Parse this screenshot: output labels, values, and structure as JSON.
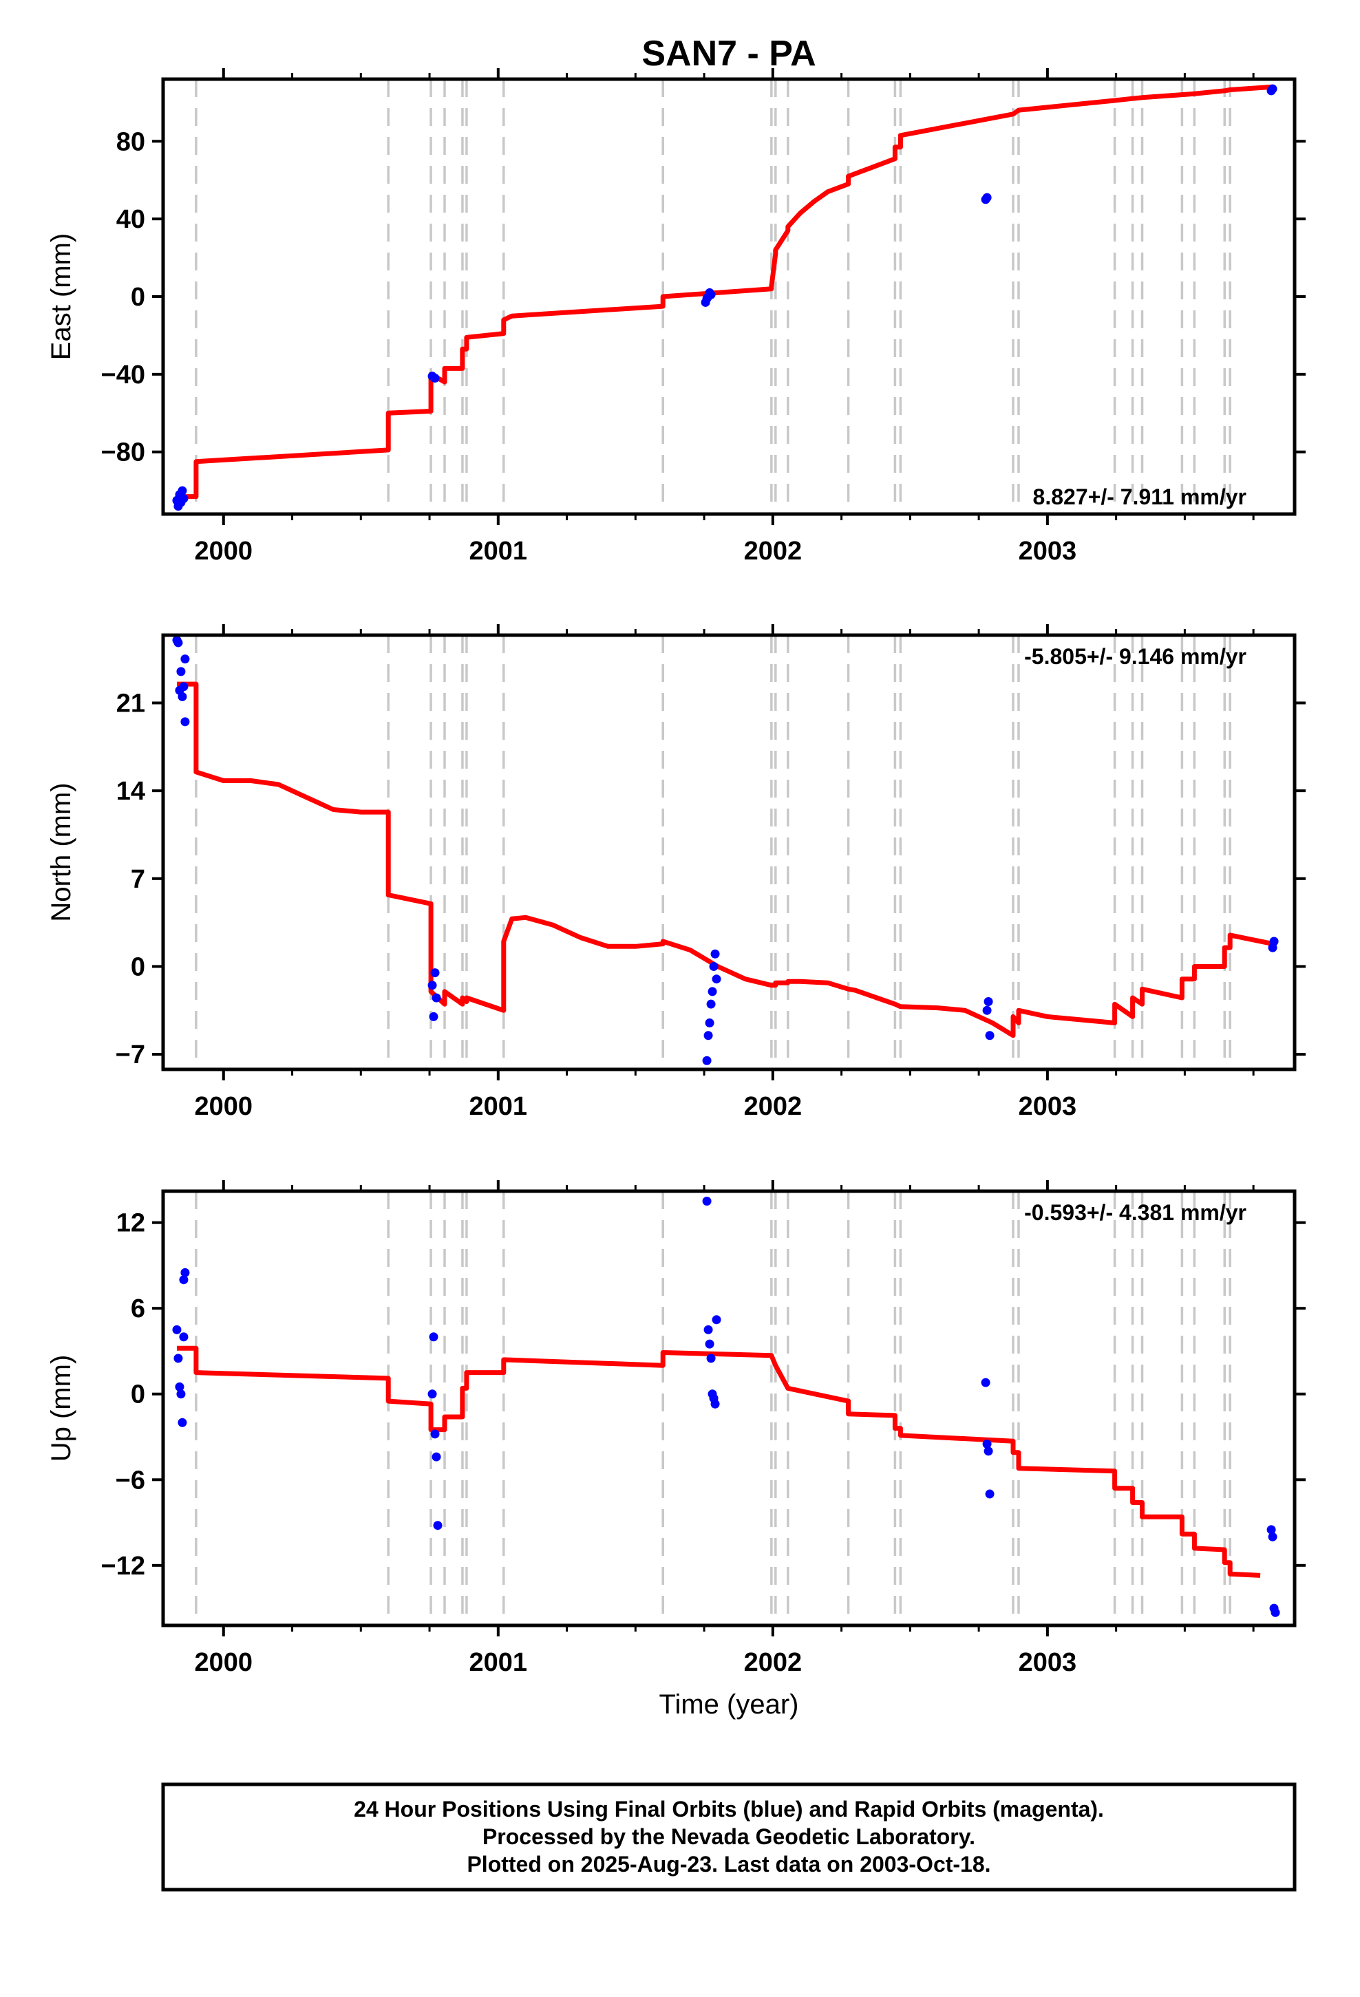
{
  "title": "SAN7 - PA",
  "xlabel": "Time (year)",
  "caption": {
    "lines": [
      "24 Hour Positions Using Final Orbits (blue) and Rapid Orbits (magenta).",
      "Processed by the Nevada Geodetic Laboratory.",
      "Plotted on 2025-Aug-23. Last data on 2003-Oct-18."
    ]
  },
  "colors": {
    "data_points": "#0000ff",
    "model_line": "#ff0000",
    "event_lines": "#c8c8c8",
    "frame": "#000000"
  },
  "chart_data": [
    {
      "type": "scatter",
      "component": "east",
      "ylabel": "East (mm)",
      "rate_text": "8.827+/- 7.911 mm/yr",
      "rate_position": "bottom-right",
      "xlim": [
        1999.78,
        2003.9
      ],
      "ylim": [
        -112,
        112
      ],
      "x_ticks": [
        2000,
        2001,
        2002,
        2003
      ],
      "x_tick_labels": [
        "2000",
        "2001",
        "2002",
        "2003"
      ],
      "y_ticks": [
        -80,
        -40,
        0,
        40,
        80
      ],
      "y_tick_labels": [
        "−80",
        "−40",
        "0",
        "40",
        "80"
      ],
      "event_lines_x": [
        1999.9,
        2000.6,
        2000.755,
        2000.805,
        2000.87,
        2000.885,
        2001.02,
        2001.6,
        2001.995,
        2002.01,
        2002.055,
        2002.275,
        2002.445,
        2002.465,
        2002.875,
        2002.895,
        2003.245,
        2003.31,
        2003.345,
        2003.49,
        2003.535,
        2003.645,
        2003.665
      ],
      "points": {
        "x": [
          1999.83,
          1999.835,
          1999.84,
          1999.845,
          1999.85,
          1999.855,
          2000.76,
          2000.77,
          2001.755,
          2001.76,
          2001.765,
          2001.77,
          2001.775,
          2002.775,
          2002.78,
          2003.815,
          2003.82
        ],
        "y": [
          -105,
          -108,
          -102,
          -106,
          -100,
          -104,
          -41,
          -42,
          -3,
          -1,
          0,
          2,
          1,
          50,
          51,
          106,
          107
        ]
      },
      "model": {
        "x": [
          1999.83,
          1999.9,
          1999.9,
          2000.6,
          2000.6,
          2000.755,
          2000.755,
          2000.805,
          2000.805,
          2000.87,
          2000.87,
          2000.885,
          2000.885,
          2001.02,
          2001.02,
          2001.05,
          2001.6,
          2001.6,
          2001.995,
          2001.995,
          2002.01,
          2002.01,
          2002.055,
          2002.055,
          2002.1,
          2002.15,
          2002.2,
          2002.275,
          2002.275,
          2002.445,
          2002.445,
          2002.465,
          2002.465,
          2002.875,
          2002.875,
          2002.895,
          2002.895,
          2003.245,
          2003.245,
          2003.31,
          2003.31,
          2003.345,
          2003.345,
          2003.49,
          2003.49,
          2003.535,
          2003.535,
          2003.645,
          2003.645,
          2003.665,
          2003.665,
          2003.82
        ],
        "y": [
          -103,
          -103,
          -85,
          -79,
          -60,
          -59,
          -40,
          -44,
          -37,
          -37,
          -27,
          -27,
          -21,
          -19,
          -12,
          -10,
          -5,
          0,
          4,
          5,
          22,
          24,
          34,
          36,
          43,
          49,
          54,
          58,
          62,
          71,
          77,
          77,
          83,
          94,
          94,
          96,
          96,
          101,
          101,
          102,
          102,
          102.5,
          102.5,
          104,
          104,
          104.5,
          104.5,
          106,
          106,
          106.5,
          106.5,
          108
        ]
      }
    },
    {
      "type": "scatter",
      "component": "north",
      "ylabel": "North (mm)",
      "rate_text": "-5.805+/- 9.146 mm/yr",
      "rate_position": "top-right",
      "xlim": [
        1999.78,
        2003.9
      ],
      "ylim": [
        -8.2,
        26.4
      ],
      "x_ticks": [
        2000,
        2001,
        2002,
        2003
      ],
      "x_tick_labels": [
        "2000",
        "2001",
        "2002",
        "2003"
      ],
      "y_ticks": [
        -7,
        0,
        7,
        14,
        21
      ],
      "y_tick_labels": [
        "−7",
        "0",
        "7",
        "14",
        "21"
      ],
      "event_lines_x": [
        1999.9,
        2000.6,
        2000.755,
        2000.805,
        2000.87,
        2000.885,
        2001.02,
        2001.6,
        2001.995,
        2002.01,
        2002.055,
        2002.275,
        2002.445,
        2002.465,
        2002.875,
        2002.895,
        2003.245,
        2003.31,
        2003.345,
        2003.49,
        2003.535,
        2003.645,
        2003.665
      ],
      "points": {
        "x": [
          1999.83,
          1999.835,
          1999.84,
          1999.845,
          1999.85,
          1999.855,
          1999.86,
          1999.86,
          2000.76,
          2000.765,
          2000.77,
          2000.775,
          2001.76,
          2001.765,
          2001.77,
          2001.775,
          2001.78,
          2001.785,
          2001.79,
          2001.795,
          2002.78,
          2002.785,
          2002.79,
          2003.82,
          2003.825
        ],
        "y": [
          26,
          25.8,
          22,
          23.5,
          21.5,
          22.3,
          19.5,
          24.5,
          -1.5,
          -4,
          -0.5,
          -2.5,
          -7.5,
          -5.5,
          -4.5,
          -3,
          -2,
          0,
          1,
          -1,
          -3.5,
          -2.8,
          -5.5,
          1.5,
          2
        ]
      },
      "model": {
        "x": [
          1999.83,
          1999.9,
          1999.9,
          2000.0,
          2000.1,
          2000.2,
          2000.3,
          2000.4,
          2000.5,
          2000.6,
          2000.6,
          2000.755,
          2000.755,
          2000.805,
          2000.805,
          2000.87,
          2000.87,
          2000.885,
          2000.885,
          2001.02,
          2001.02,
          2001.05,
          2001.1,
          2001.2,
          2001.3,
          2001.4,
          2001.5,
          2001.6,
          2001.6,
          2001.7,
          2001.8,
          2001.9,
          2001.995,
          2001.995,
          2002.01,
          2002.01,
          2002.055,
          2002.055,
          2002.1,
          2002.2,
          2002.275,
          2002.275,
          2002.3,
          2002.445,
          2002.445,
          2002.465,
          2002.465,
          2002.6,
          2002.7,
          2002.8,
          2002.875,
          2002.875,
          2002.895,
          2002.895,
          2003.0,
          2003.1,
          2003.245,
          2003.245,
          2003.31,
          2003.31,
          2003.345,
          2003.345,
          2003.49,
          2003.49,
          2003.535,
          2003.535,
          2003.645,
          2003.645,
          2003.665,
          2003.665,
          2003.82
        ],
        "y": [
          22.5,
          22.5,
          15.5,
          14.8,
          14.8,
          14.5,
          13.5,
          12.5,
          12.3,
          12.3,
          5.7,
          5,
          -2,
          -3,
          -2,
          -3,
          -2.5,
          -2.8,
          -2.5,
          -3.5,
          2,
          3.8,
          3.9,
          3.3,
          2.3,
          1.6,
          1.6,
          1.8,
          2,
          1.3,
          0,
          -1,
          -1.5,
          -1.5,
          -1.5,
          -1.3,
          -1.3,
          -1.2,
          -1.2,
          -1.3,
          -1.8,
          -1.8,
          -1.9,
          -3,
          -3,
          -3.2,
          -3.2,
          -3.3,
          -3.5,
          -4.5,
          -5.5,
          -4,
          -4.5,
          -3.5,
          -4,
          -4.2,
          -4.5,
          -3,
          -4,
          -2.5,
          -3,
          -1.8,
          -2.5,
          -1,
          -1,
          0,
          0,
          1.5,
          1.5,
          2.5,
          1.8
        ]
      }
    },
    {
      "type": "scatter",
      "component": "up",
      "ylabel": "Up (mm)",
      "rate_text": "-0.593+/- 4.381 mm/yr",
      "rate_position": "top-right",
      "xlim": [
        1999.78,
        2003.9
      ],
      "ylim": [
        -16.2,
        14.2
      ],
      "x_ticks": [
        2000,
        2001,
        2002,
        2003
      ],
      "x_tick_labels": [
        "2000",
        "2001",
        "2002",
        "2003"
      ],
      "y_ticks": [
        -12,
        -6,
        0,
        6,
        12
      ],
      "y_tick_labels": [
        "−12",
        "−6",
        "0",
        "6",
        "12"
      ],
      "event_lines_x": [
        1999.9,
        2000.6,
        2000.755,
        2000.805,
        2000.87,
        2000.885,
        2001.02,
        2001.6,
        2001.995,
        2002.01,
        2002.055,
        2002.275,
        2002.445,
        2002.465,
        2002.875,
        2002.895,
        2003.245,
        2003.31,
        2003.345,
        2003.49,
        2003.535,
        2003.645,
        2003.665
      ],
      "points": {
        "x": [
          1999.83,
          1999.835,
          1999.84,
          1999.845,
          1999.85,
          1999.855,
          1999.855,
          1999.86,
          2000.76,
          2000.765,
          2000.77,
          2000.775,
          2000.78,
          2001.76,
          2001.765,
          2001.77,
          2001.775,
          2001.78,
          2001.785,
          2001.79,
          2001.795,
          2002.775,
          2002.78,
          2002.785,
          2002.79,
          2003.815,
          2003.82,
          2003.825,
          2003.83
        ],
        "y": [
          4.5,
          2.5,
          0.5,
          0,
          -2,
          4,
          8,
          8.5,
          0,
          4,
          -2.8,
          -4.4,
          -9.2,
          13.5,
          4.5,
          3.5,
          2.5,
          0,
          -0.3,
          -0.7,
          5.2,
          0.8,
          -3.5,
          -4,
          -7,
          -9.5,
          -10,
          -15,
          -15.3
        ]
      },
      "model": {
        "x": [
          1999.83,
          1999.9,
          1999.9,
          2000.6,
          2000.6,
          2000.755,
          2000.755,
          2000.805,
          2000.805,
          2000.87,
          2000.87,
          2000.885,
          2000.885,
          2001.02,
          2001.02,
          2001.6,
          2001.6,
          2001.995,
          2001.995,
          2002.01,
          2002.01,
          2002.055,
          2002.055,
          2002.275,
          2002.275,
          2002.445,
          2002.445,
          2002.465,
          2002.465,
          2002.875,
          2002.875,
          2002.895,
          2002.895,
          2003.245,
          2003.245,
          2003.31,
          2003.31,
          2003.345,
          2003.345,
          2003.49,
          2003.49,
          2003.535,
          2003.535,
          2003.645,
          2003.645,
          2003.665,
          2003.665,
          2003.775
        ],
        "y": [
          3.2,
          3.2,
          1.5,
          1.1,
          -0.5,
          -0.7,
          -2.5,
          -2.5,
          -1.6,
          -1.6,
          0.4,
          0.4,
          1.5,
          1.5,
          2.4,
          2.0,
          2.9,
          2.7,
          2.7,
          2.0,
          2.0,
          0.4,
          0.4,
          -0.5,
          -1.4,
          -1.5,
          -2.4,
          -2.4,
          -2.9,
          -3.3,
          -4.1,
          -4.1,
          -5.2,
          -5.4,
          -6.6,
          -6.6,
          -7.6,
          -7.6,
          -8.6,
          -8.6,
          -9.8,
          -9.8,
          -10.8,
          -10.9,
          -11.8,
          -11.8,
          -12.6,
          -12.7
        ]
      }
    }
  ]
}
